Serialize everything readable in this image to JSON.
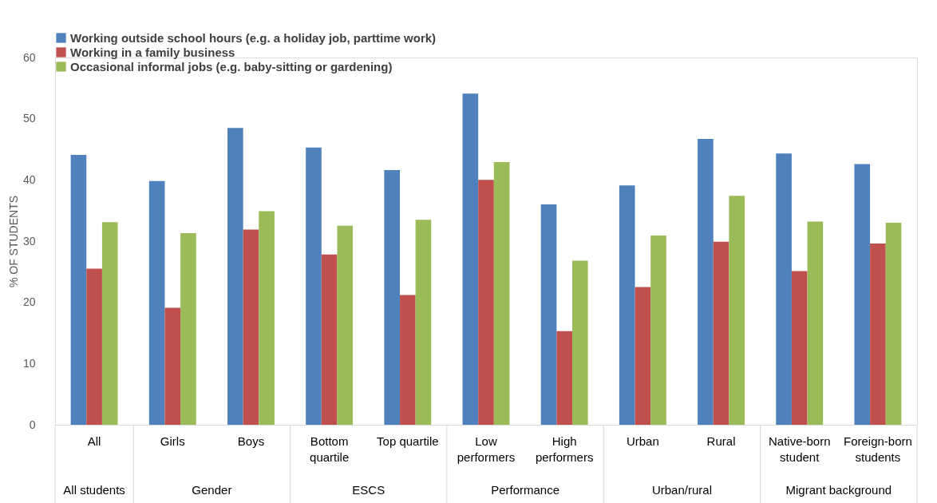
{
  "chart_data": {
    "type": "bar",
    "ylabel": "% OF STUDENTS",
    "categories": [
      "All",
      "Girls",
      "Boys",
      "Bottom\nquartile",
      "Top quartile",
      "Low\nperformers",
      "High\nperformers",
      "Urban",
      "Rural",
      "Native-born\nstudent",
      "Foreign-born\nstudents"
    ],
    "series": [
      {
        "name": "Working outside school hours (e.g. a holiday job, parttime work)",
        "color": "#4f81bd",
        "values": [
          44.1,
          39.8,
          48.5,
          45.3,
          41.6,
          54.1,
          36.0,
          39.1,
          46.7,
          44.3,
          42.6
        ]
      },
      {
        "name": "Working in a family business",
        "color": "#c0504d",
        "values": [
          25.5,
          19.1,
          31.9,
          27.8,
          21.2,
          40.0,
          15.3,
          22.5,
          29.9,
          25.1,
          29.6
        ]
      },
      {
        "name": "Occasional informal jobs (e.g. baby-sitting or gardening)",
        "color": "#9bbb59",
        "values": [
          33.1,
          31.3,
          34.9,
          32.5,
          33.5,
          42.9,
          26.8,
          30.9,
          37.4,
          33.2,
          33.0
        ]
      }
    ],
    "ylim": [
      0,
      60
    ],
    "yticks": [
      0,
      10,
      20,
      30,
      40,
      50,
      60
    ],
    "grid": false,
    "legend": "top",
    "annotations": [
      "All students",
      "Gender",
      "ESCS",
      "Performance",
      "Urban/rural",
      "Migrant background"
    ]
  }
}
